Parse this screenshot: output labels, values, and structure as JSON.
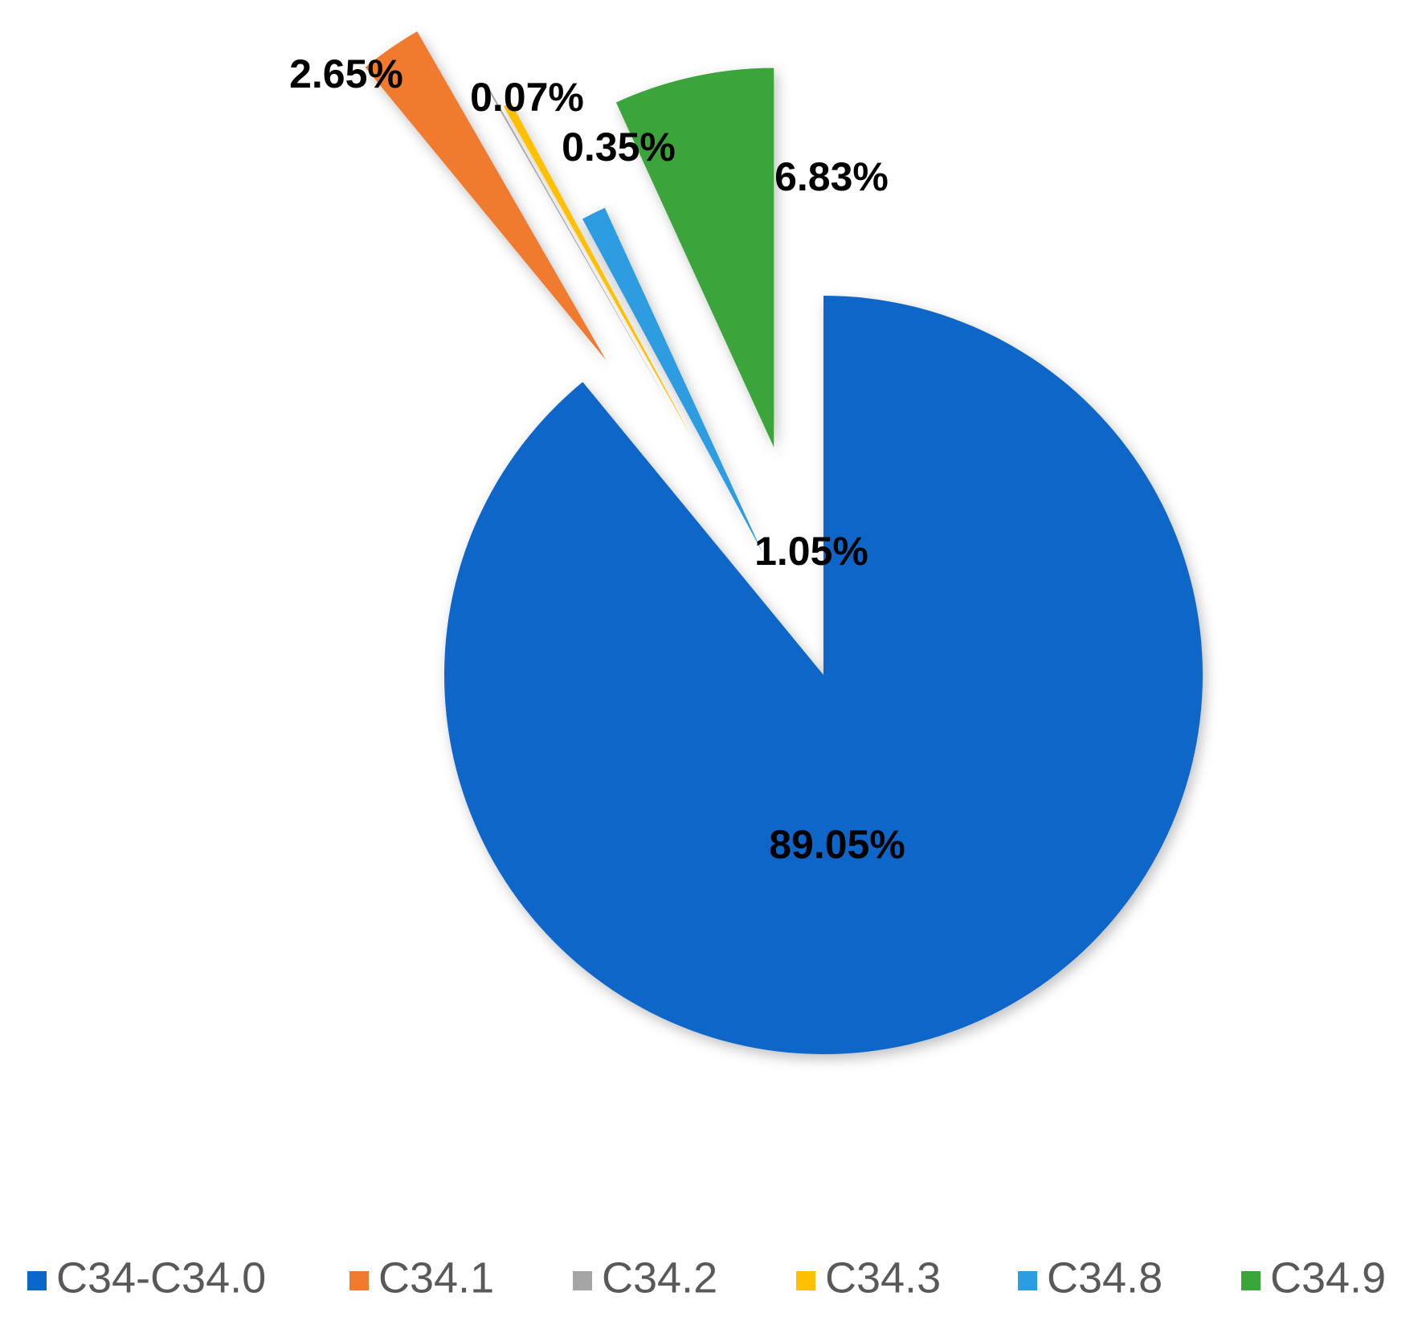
{
  "chart_data": {
    "type": "pie",
    "categories": [
      "C34-C34.0",
      "C34.1",
      "C34.2",
      "C34.3",
      "C34.8",
      "C34.9"
    ],
    "values": [
      89.05,
      2.65,
      0.07,
      0.35,
      1.05,
      6.83
    ],
    "value_labels": [
      "89.05%",
      "2.65%",
      "0.07%",
      "0.35%",
      "1.05%",
      "6.83%"
    ],
    "colors": [
      "#0a66c8",
      "#f07a2e",
      "#a5a5a5",
      "#ffc000",
      "#2e9ce0",
      "#3aa53a"
    ],
    "legend": "bottom"
  }
}
